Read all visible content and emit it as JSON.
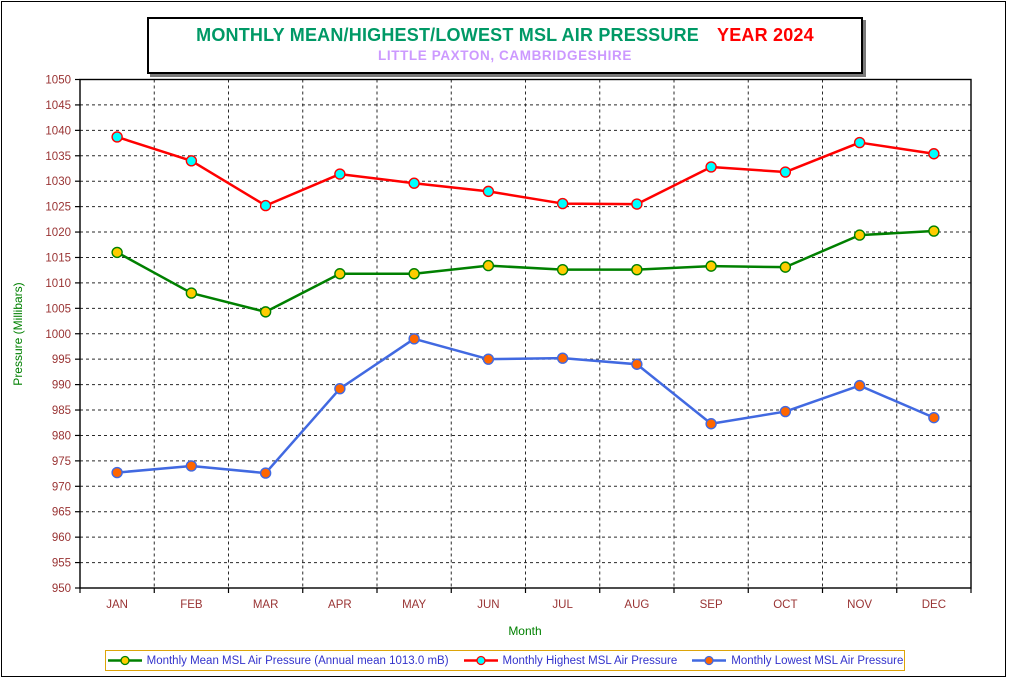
{
  "title": {
    "main": "MONTHLY MEAN/HIGHEST/LOWEST MSL AIR PRESSURE",
    "year": "YEAR 2024",
    "subtitle": "LITTLE PAXTON, CAMBRIDGESHIRE"
  },
  "colors": {
    "title_green": "#009966",
    "title_year_red": "#ff0000",
    "subtitle_purple": "#cc99ff",
    "tick_label_brown": "#993333",
    "axis_title_green": "#008000",
    "legend_text_blue": "#3333cc",
    "legend_border_gold": "#dda409"
  },
  "chart_data": {
    "type": "line",
    "title": "MONTHLY MEAN/HIGHEST/LOWEST MSL AIR PRESSURE  YEAR 2024",
    "subtitle": "LITTLE PAXTON, CAMBRIDGESHIRE",
    "xlabel": "Month",
    "ylabel": "Pressure (Millibars)",
    "ylim": [
      950,
      1050
    ],
    "ytick_step": 5,
    "grid": true,
    "legend_position": "bottom",
    "categories": [
      "JAN",
      "FEB",
      "MAR",
      "APR",
      "MAY",
      "JUN",
      "JUL",
      "AUG",
      "SEP",
      "OCT",
      "NOV",
      "DEC"
    ],
    "series": [
      {
        "name": "Monthly Mean MSL Air Pressure (Annual mean 1013.0 mB)",
        "line_color": "#008000",
        "marker_color": "#ffcc00",
        "values": [
          1016.0,
          1008.0,
          1004.3,
          1011.8,
          1011.8,
          1013.4,
          1012.6,
          1012.6,
          1013.3,
          1013.1,
          1019.4,
          1020.2
        ]
      },
      {
        "name": "Monthly Highest MSL Air Pressure",
        "line_color": "#ff0000",
        "marker_color": "#00ffff",
        "values": [
          1038.7,
          1034.0,
          1025.2,
          1031.4,
          1029.6,
          1028.0,
          1025.6,
          1025.5,
          1032.8,
          1031.8,
          1037.6,
          1035.4
        ]
      },
      {
        "name": "Monthly Lowest MSL Air Pressure",
        "line_color": "#4169e1",
        "marker_color": "#ff6600",
        "values": [
          972.7,
          974.0,
          972.6,
          989.2,
          999.0,
          995.0,
          995.2,
          994.0,
          982.3,
          984.7,
          989.8,
          983.5
        ]
      }
    ]
  }
}
